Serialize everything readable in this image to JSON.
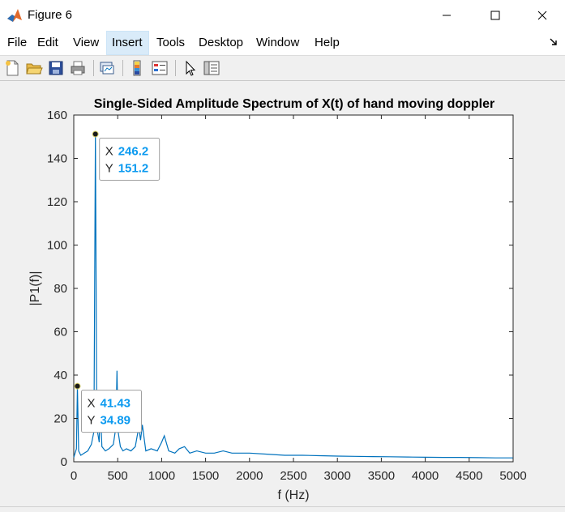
{
  "window": {
    "title": "Figure 6"
  },
  "menu": [
    "File",
    "Edit",
    "View",
    "Insert",
    "Tools",
    "Desktop",
    "Window",
    "Help"
  ],
  "menu_active": "Insert",
  "toolbar": [
    "new-figure-icon",
    "open-file-icon",
    "save-icon",
    "print-icon",
    "link-plot-icon",
    "insert-colorbar-icon",
    "insert-legend-icon",
    "edit-plot-cursor-icon",
    "property-inspector-icon"
  ],
  "chart_data": {
    "type": "line",
    "title": "Single-Sided Amplitude Spectrum of X(t) of hand moving doppler",
    "xlabel": "f (Hz)",
    "ylabel": "|P1(f)|",
    "xlim": [
      0,
      5000
    ],
    "ylim": [
      0,
      160
    ],
    "xticks": [
      0,
      500,
      1000,
      1500,
      2000,
      2500,
      3000,
      3500,
      4000,
      4500,
      5000
    ],
    "yticks": [
      0,
      20,
      40,
      60,
      80,
      100,
      120,
      140,
      160
    ],
    "line_color": "#0072bd",
    "grid": false,
    "series": [
      {
        "x": [
          0,
          15,
          30,
          41.43,
          55,
          80,
          120,
          160,
          200,
          230,
          246.2,
          262,
          290,
          300,
          320,
          360,
          400,
          450,
          480,
          492,
          505,
          530,
          560,
          600,
          650,
          700,
          740,
          760,
          780,
          820,
          880,
          950,
          1000,
          1030,
          1080,
          1150,
          1200,
          1260,
          1320,
          1400,
          1500,
          1600,
          1700,
          1800,
          1900,
          2000,
          2200,
          2400,
          2600,
          2800,
          3000,
          3200,
          3400,
          3600,
          3800,
          4000,
          4200,
          4400,
          4600,
          4800,
          5000
        ],
        "y": [
          2,
          4,
          6,
          34.89,
          5,
          3,
          4,
          5,
          8,
          14,
          151.2,
          16,
          9,
          28,
          7,
          5,
          6,
          8,
          16,
          42,
          14,
          7,
          5,
          6,
          5,
          7,
          16,
          10,
          17,
          5,
          6,
          5,
          9,
          12,
          5,
          4,
          6,
          7,
          4,
          5,
          4,
          4,
          5,
          4,
          4,
          4,
          3.5,
          3,
          3,
          2.8,
          2.6,
          2.5,
          2.4,
          2.3,
          2.2,
          2.1,
          2,
          2,
          1.9,
          1.8,
          1.8
        ]
      }
    ],
    "annotations": [
      {
        "x_label": "X",
        "x_value": "246.2",
        "y_label": "Y",
        "y_value": "151.2",
        "x": 246.2,
        "y": 151.2
      },
      {
        "x_label": "X",
        "x_value": "41.43",
        "y_label": "Y",
        "y_value": "34.89",
        "x": 41.43,
        "y": 34.89
      }
    ]
  }
}
